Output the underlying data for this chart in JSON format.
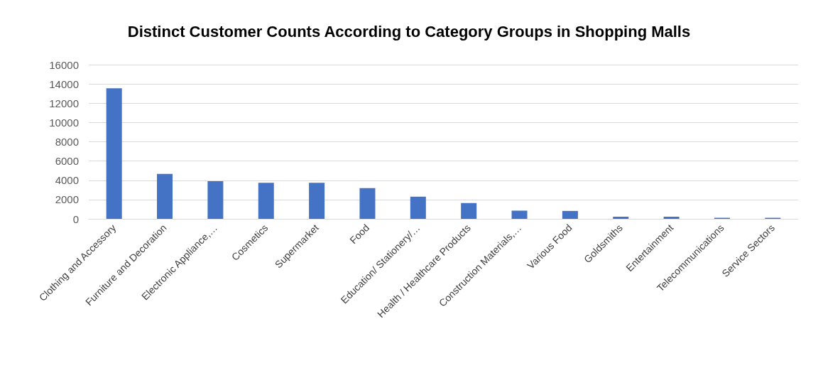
{
  "chart_data": {
    "type": "bar",
    "title": "Distinct Customer Counts According to Category Groups in Shopping Malls",
    "categories": [
      "Clothing and Accessory",
      "Furniture and Decoration",
      "Electronic Appliance,…",
      "Cosmetics",
      "Supermarket",
      "Food",
      "Education/ Stationery/…",
      "Health / Healthcare Products",
      "Construction Materials,…",
      "Various Food",
      "Goldsmiths",
      "Entertainment",
      "Telecommunications",
      "Service Sectors"
    ],
    "values": [
      13550,
      4670,
      3900,
      3740,
      3740,
      3190,
      2300,
      1640,
      850,
      820,
      220,
      220,
      110,
      110
    ],
    "color": "#4472c4",
    "ylim": [
      0,
      16000
    ],
    "yticks": [
      0,
      2000,
      4000,
      6000,
      8000,
      10000,
      12000,
      14000,
      16000
    ],
    "grid": "y"
  }
}
